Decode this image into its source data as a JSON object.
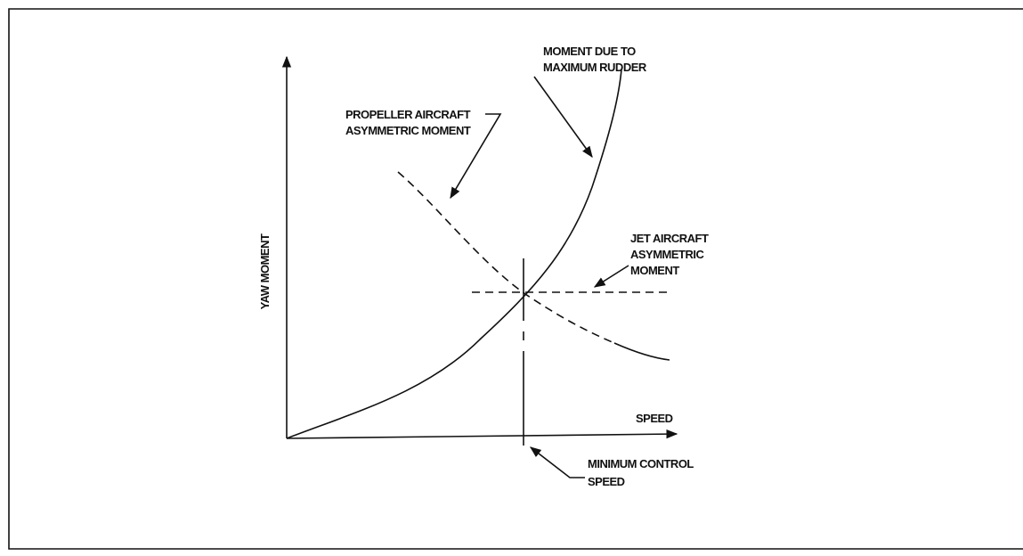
{
  "diagram": {
    "y_axis_label": "YAW MOMENT",
    "x_axis_label": "SPEED",
    "annotations": [
      {
        "lines": [
          "MOMENT DUE TO",
          "MAXIMUM RUDDER"
        ]
      },
      {
        "lines": [
          "PROPELLER AIRCRAFT",
          "ASYMMETRIC MOMENT"
        ]
      },
      {
        "lines": [
          "JET AIRCRAFT",
          "ASYMMETRIC",
          "MOMENT"
        ]
      },
      {
        "lines": [
          "MINIMUM CONTROL",
          "SPEED"
        ]
      }
    ]
  }
}
